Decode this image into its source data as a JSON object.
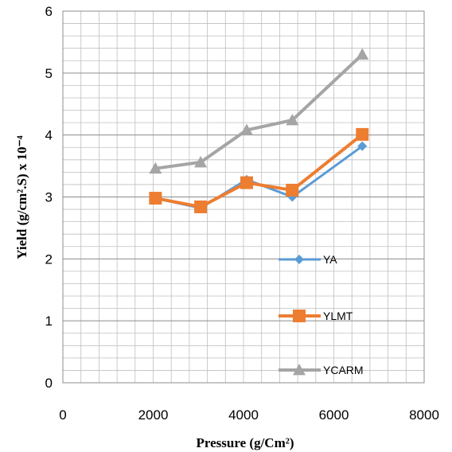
{
  "chart_data": {
    "type": "line",
    "title": "",
    "xlabel": "Pressure (g/Cm²)",
    "ylabel": "Yield (g/cm².S) x 10⁻⁴",
    "xlim": [
      0,
      8000
    ],
    "ylim": [
      0,
      6
    ],
    "x_ticks": [
      "0",
      "2000",
      "4000",
      "6000",
      "8000"
    ],
    "y_ticks": [
      "0",
      "1",
      "2",
      "3",
      "4",
      "5",
      "6"
    ],
    "grid": true,
    "legend_position": "right",
    "x": [
      2050,
      3050,
      4070,
      5080,
      6630
    ],
    "series": [
      {
        "name": "YA",
        "color": "#5b9bd5",
        "marker": "diamond",
        "values": [
          2.98,
          2.82,
          3.28,
          3.0,
          3.82
        ]
      },
      {
        "name": "YLMT",
        "color": "#ed7d31",
        "marker": "square",
        "values": [
          2.98,
          2.84,
          3.23,
          3.11,
          4.01
        ]
      },
      {
        "name": "YCARM",
        "color": "#a5a5a5",
        "marker": "triangle",
        "values": [
          3.46,
          3.56,
          4.08,
          4.24,
          5.3
        ]
      }
    ]
  }
}
